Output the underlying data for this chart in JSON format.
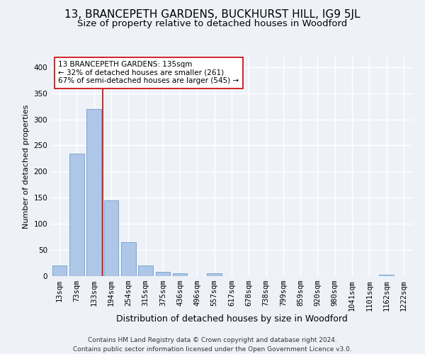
{
  "title": "13, BRANCEPETH GARDENS, BUCKHURST HILL, IG9 5JL",
  "subtitle": "Size of property relative to detached houses in Woodford",
  "xlabel": "Distribution of detached houses by size in Woodford",
  "ylabel": "Number of detached properties",
  "categories": [
    "13sqm",
    "73sqm",
    "133sqm",
    "194sqm",
    "254sqm",
    "315sqm",
    "375sqm",
    "436sqm",
    "496sqm",
    "557sqm",
    "617sqm",
    "678sqm",
    "738sqm",
    "799sqm",
    "859sqm",
    "920sqm",
    "980sqm",
    "1041sqm",
    "1101sqm",
    "1162sqm",
    "1222sqm"
  ],
  "values": [
    20,
    235,
    320,
    145,
    65,
    20,
    8,
    5,
    0,
    5,
    0,
    0,
    0,
    0,
    0,
    0,
    0,
    0,
    0,
    3,
    0
  ],
  "bar_color": "#aec6e8",
  "bar_edge_color": "#6b9fc8",
  "vline_x": 2.5,
  "vline_color": "#cc0000",
  "annotation_text": "13 BRANCEPETH GARDENS: 135sqm\n← 32% of detached houses are smaller (261)\n67% of semi-detached houses are larger (545) →",
  "annotation_box_color": "white",
  "annotation_box_edge_color": "#cc0000",
  "ylim": [
    0,
    420
  ],
  "yticks": [
    0,
    50,
    100,
    150,
    200,
    250,
    300,
    350,
    400
  ],
  "background_color": "#eef2f8",
  "grid_color": "white",
  "footer": "Contains HM Land Registry data © Crown copyright and database right 2024.\nContains public sector information licensed under the Open Government Licence v3.0.",
  "title_fontsize": 11,
  "subtitle_fontsize": 9.5,
  "xlabel_fontsize": 9,
  "ylabel_fontsize": 8,
  "tick_fontsize": 7.5,
  "annotation_fontsize": 7.5,
  "footer_fontsize": 6.5
}
